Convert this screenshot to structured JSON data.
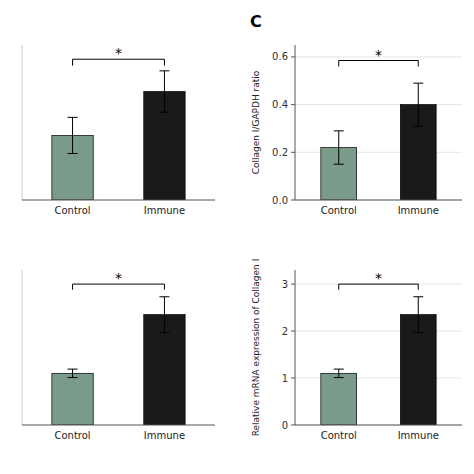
{
  "chart_data": [
    {
      "type": "bar",
      "categories": [
        "Control",
        "Immune"
      ],
      "values": [
        0.25,
        0.42
      ],
      "errors": [
        0.07,
        0.08
      ],
      "colors": [
        "#7a9a8a",
        "#1a1a1a"
      ],
      "ylim": [
        0,
        0.6
      ],
      "tick_labels": "x",
      "bracket_y": 0.545,
      "bracket_drop": 0.025,
      "annotations": [
        "*"
      ]
    },
    {
      "type": "bar",
      "title": "C",
      "categories": [
        "Control",
        "Immune"
      ],
      "values": [
        0.22,
        0.4
      ],
      "errors": [
        0.07,
        0.09
      ],
      "colors": [
        "#7a9a8a",
        "#1a1a1a"
      ],
      "ylabel": "Collagen I/GAPDH ratio",
      "ylim": [
        0,
        0.65
      ],
      "yticks": [
        {
          "value": 0,
          "label": "0.0"
        },
        0.2,
        0.4,
        0.6
      ],
      "bracket_y": 0.585,
      "bracket_drop": 0.025,
      "annotations": [
        "*"
      ]
    },
    {
      "type": "bar",
      "categories": [
        "Control",
        "Immune"
      ],
      "values": [
        1.1,
        2.35
      ],
      "errors": [
        0.09,
        0.38
      ],
      "colors": [
        "#7a9a8a",
        "#1a1a1a"
      ],
      "ylim": [
        0,
        3.3
      ],
      "tick_labels": "x",
      "bracket_y": 3.0,
      "bracket_drop": 0.12,
      "annotations": [
        "*"
      ]
    },
    {
      "type": "bar",
      "categories": [
        "Control",
        "Immune"
      ],
      "values": [
        1.1,
        2.35
      ],
      "errors": [
        0.09,
        0.38
      ],
      "colors": [
        "#7a9a8a",
        "#1a1a1a"
      ],
      "ylabel": "Relative mRNA expression of Collagen I",
      "ylim": [
        0,
        3.3
      ],
      "yticks": [
        0,
        1,
        2,
        3
      ],
      "bracket_y": 3.0,
      "bracket_drop": 0.12,
      "annotations": [
        "*"
      ]
    }
  ]
}
